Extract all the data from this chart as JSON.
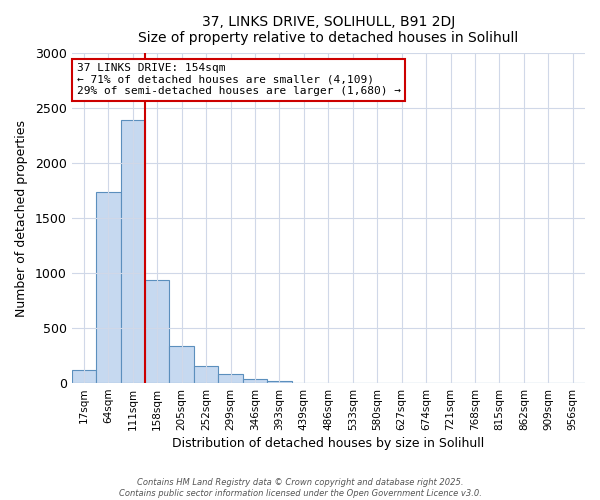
{
  "title": "37, LINKS DRIVE, SOLIHULL, B91 2DJ",
  "subtitle": "Size of property relative to detached houses in Solihull",
  "xlabel": "Distribution of detached houses by size in Solihull",
  "ylabel": "Number of detached properties",
  "bar_labels": [
    "17sqm",
    "64sqm",
    "111sqm",
    "158sqm",
    "205sqm",
    "252sqm",
    "299sqm",
    "346sqm",
    "393sqm",
    "439sqm",
    "486sqm",
    "533sqm",
    "580sqm",
    "627sqm",
    "674sqm",
    "721sqm",
    "768sqm",
    "815sqm",
    "862sqm",
    "909sqm",
    "956sqm"
  ],
  "bar_values": [
    120,
    1740,
    2390,
    940,
    340,
    155,
    80,
    40,
    20,
    0,
    0,
    0,
    0,
    0,
    0,
    0,
    0,
    0,
    0,
    0,
    0
  ],
  "bar_color": "#c6d9f0",
  "bar_edge_color": "#5b8fbd",
  "vline_color": "#cc0000",
  "annotation_line1": "37 LINKS DRIVE: 154sqm",
  "annotation_line2": "← 71% of detached houses are smaller (4,109)",
  "annotation_line3": "29% of semi-detached houses are larger (1,680) →",
  "annotation_box_color": "#ffffff",
  "annotation_box_edge_color": "#cc0000",
  "ylim": [
    0,
    3000
  ],
  "yticks": [
    0,
    500,
    1000,
    1500,
    2000,
    2500,
    3000
  ],
  "footer_line1": "Contains HM Land Registry data © Crown copyright and database right 2025.",
  "footer_line2": "Contains public sector information licensed under the Open Government Licence v3.0.",
  "background_color": "#ffffff",
  "grid_color": "#d0d8e8"
}
